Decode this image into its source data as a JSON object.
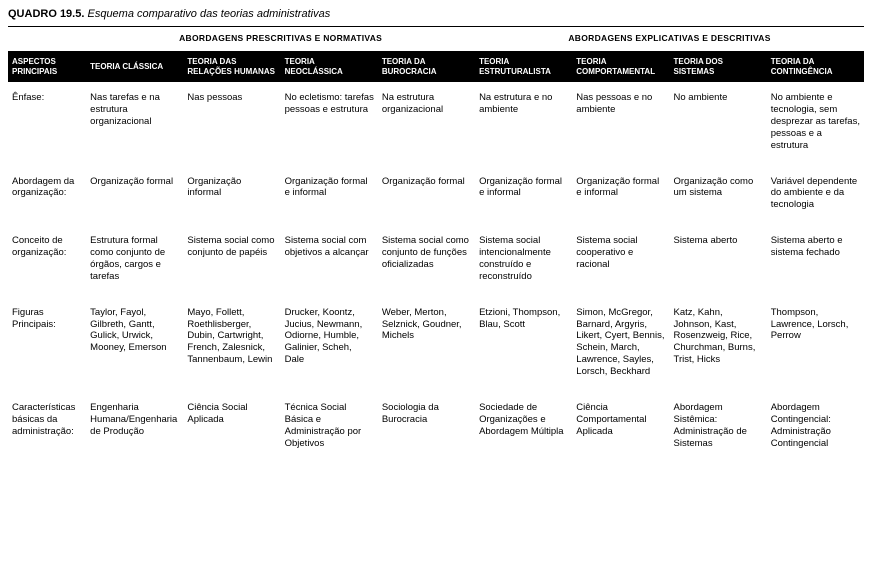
{
  "title": {
    "label": "QUADRO 19.5.",
    "text": "Esquema comparativo das teorias administrativas"
  },
  "groupHeaders": {
    "left": "ABORDAGENS PRESCRITIVAS E NORMATIVAS",
    "right": "ABORDAGENS EXPLICATIVAS E DESCRITIVAS"
  },
  "columns": [
    "ASPECTOS PRINCIPAIS",
    "TEORIA CLÁSSICA",
    "TEORIA DAS RELAÇÕES HUMANAS",
    "TEORIA NEOCLÁSSICA",
    "TEORIA DA BUROCRACIA",
    "TEORIA ESTRUTURALISTA",
    "TEORIA COMPORTAMENTAL",
    "TEORIA DOS SISTEMAS",
    "TEORIA DA CONTINGÊNCIA"
  ],
  "rows": [
    {
      "aspect": "Ênfase:",
      "cells": [
        "Nas tarefas e na estrutura organizacional",
        "Nas pessoas",
        "No ecletismo: tarefas pessoas e estrutura",
        "Na estrutura organizacional",
        "Na estrutura e no ambiente",
        "Nas pessoas e no ambiente",
        "No ambiente",
        "No ambiente e tecnologia, sem desprezar as tarefas, pessoas e a estrutura"
      ]
    },
    {
      "aspect": "Abordagem da organização:",
      "cells": [
        "Organização formal",
        "Organização informal",
        "Organização formal e informal",
        "Organização formal",
        "Organização formal e informal",
        "Organização formal e informal",
        "Organização como um sistema",
        "Variável dependente do ambiente e da tecnologia"
      ]
    },
    {
      "aspect": "Conceito de organização:",
      "cells": [
        "Estrutura formal como conjunto de órgãos, cargos e tarefas",
        "Sistema social como conjunto de papéis",
        "Sistema social com objetivos a alcançar",
        "Sistema social como conjunto de funções oficializadas",
        "Sistema social intencionalmente construído e reconstruído",
        "Sistema social cooperativo e racional",
        "Sistema aberto",
        "Sistema aberto e sistema fechado"
      ]
    },
    {
      "aspect": "Figuras Principais:",
      "cells": [
        "Taylor, Fayol, Gilbreth, Gantt, Gulick, Urwick, Mooney, Emerson",
        "Mayo, Follett, Roethlisberger, Dubin, Cartwright, French, Zalesnick, Tannenbaum, Lewin",
        "Drucker, Koontz, Jucius, Newmann, Odiorne, Humble, Galinier, Scheh, Dale",
        "Weber, Merton, Selznick, Goudner, Michels",
        "Etzioni, Thompson, Blau, Scott",
        "Simon, McGregor, Barnard, Argyris, Likert, Cyert, Bennis, Schein, March, Lawrence, Sayles, Lorsch, Beckhard",
        "Katz, Kahn, Johnson, Kast, Rosenzweig, Rice, Churchman, Burns, Trist, Hicks",
        "Thompson, Lawrence, Lorsch, Perrow"
      ]
    },
    {
      "aspect": "Características básicas da administração:",
      "cells": [
        "Engenharia Humana/Engenharia de Produção",
        "Ciência Social Aplicada",
        "Técnica Social Básica e Administração por Objetivos",
        "Sociologia da Burocracia",
        "Sociedade de Organizações e Abordagem Múltipla",
        "Ciência Comportamental Aplicada",
        "Abordagem Sistêmica: Administração de Sistemas",
        "Abordagem Contingencial: Administração Contingencial"
      ]
    }
  ]
}
